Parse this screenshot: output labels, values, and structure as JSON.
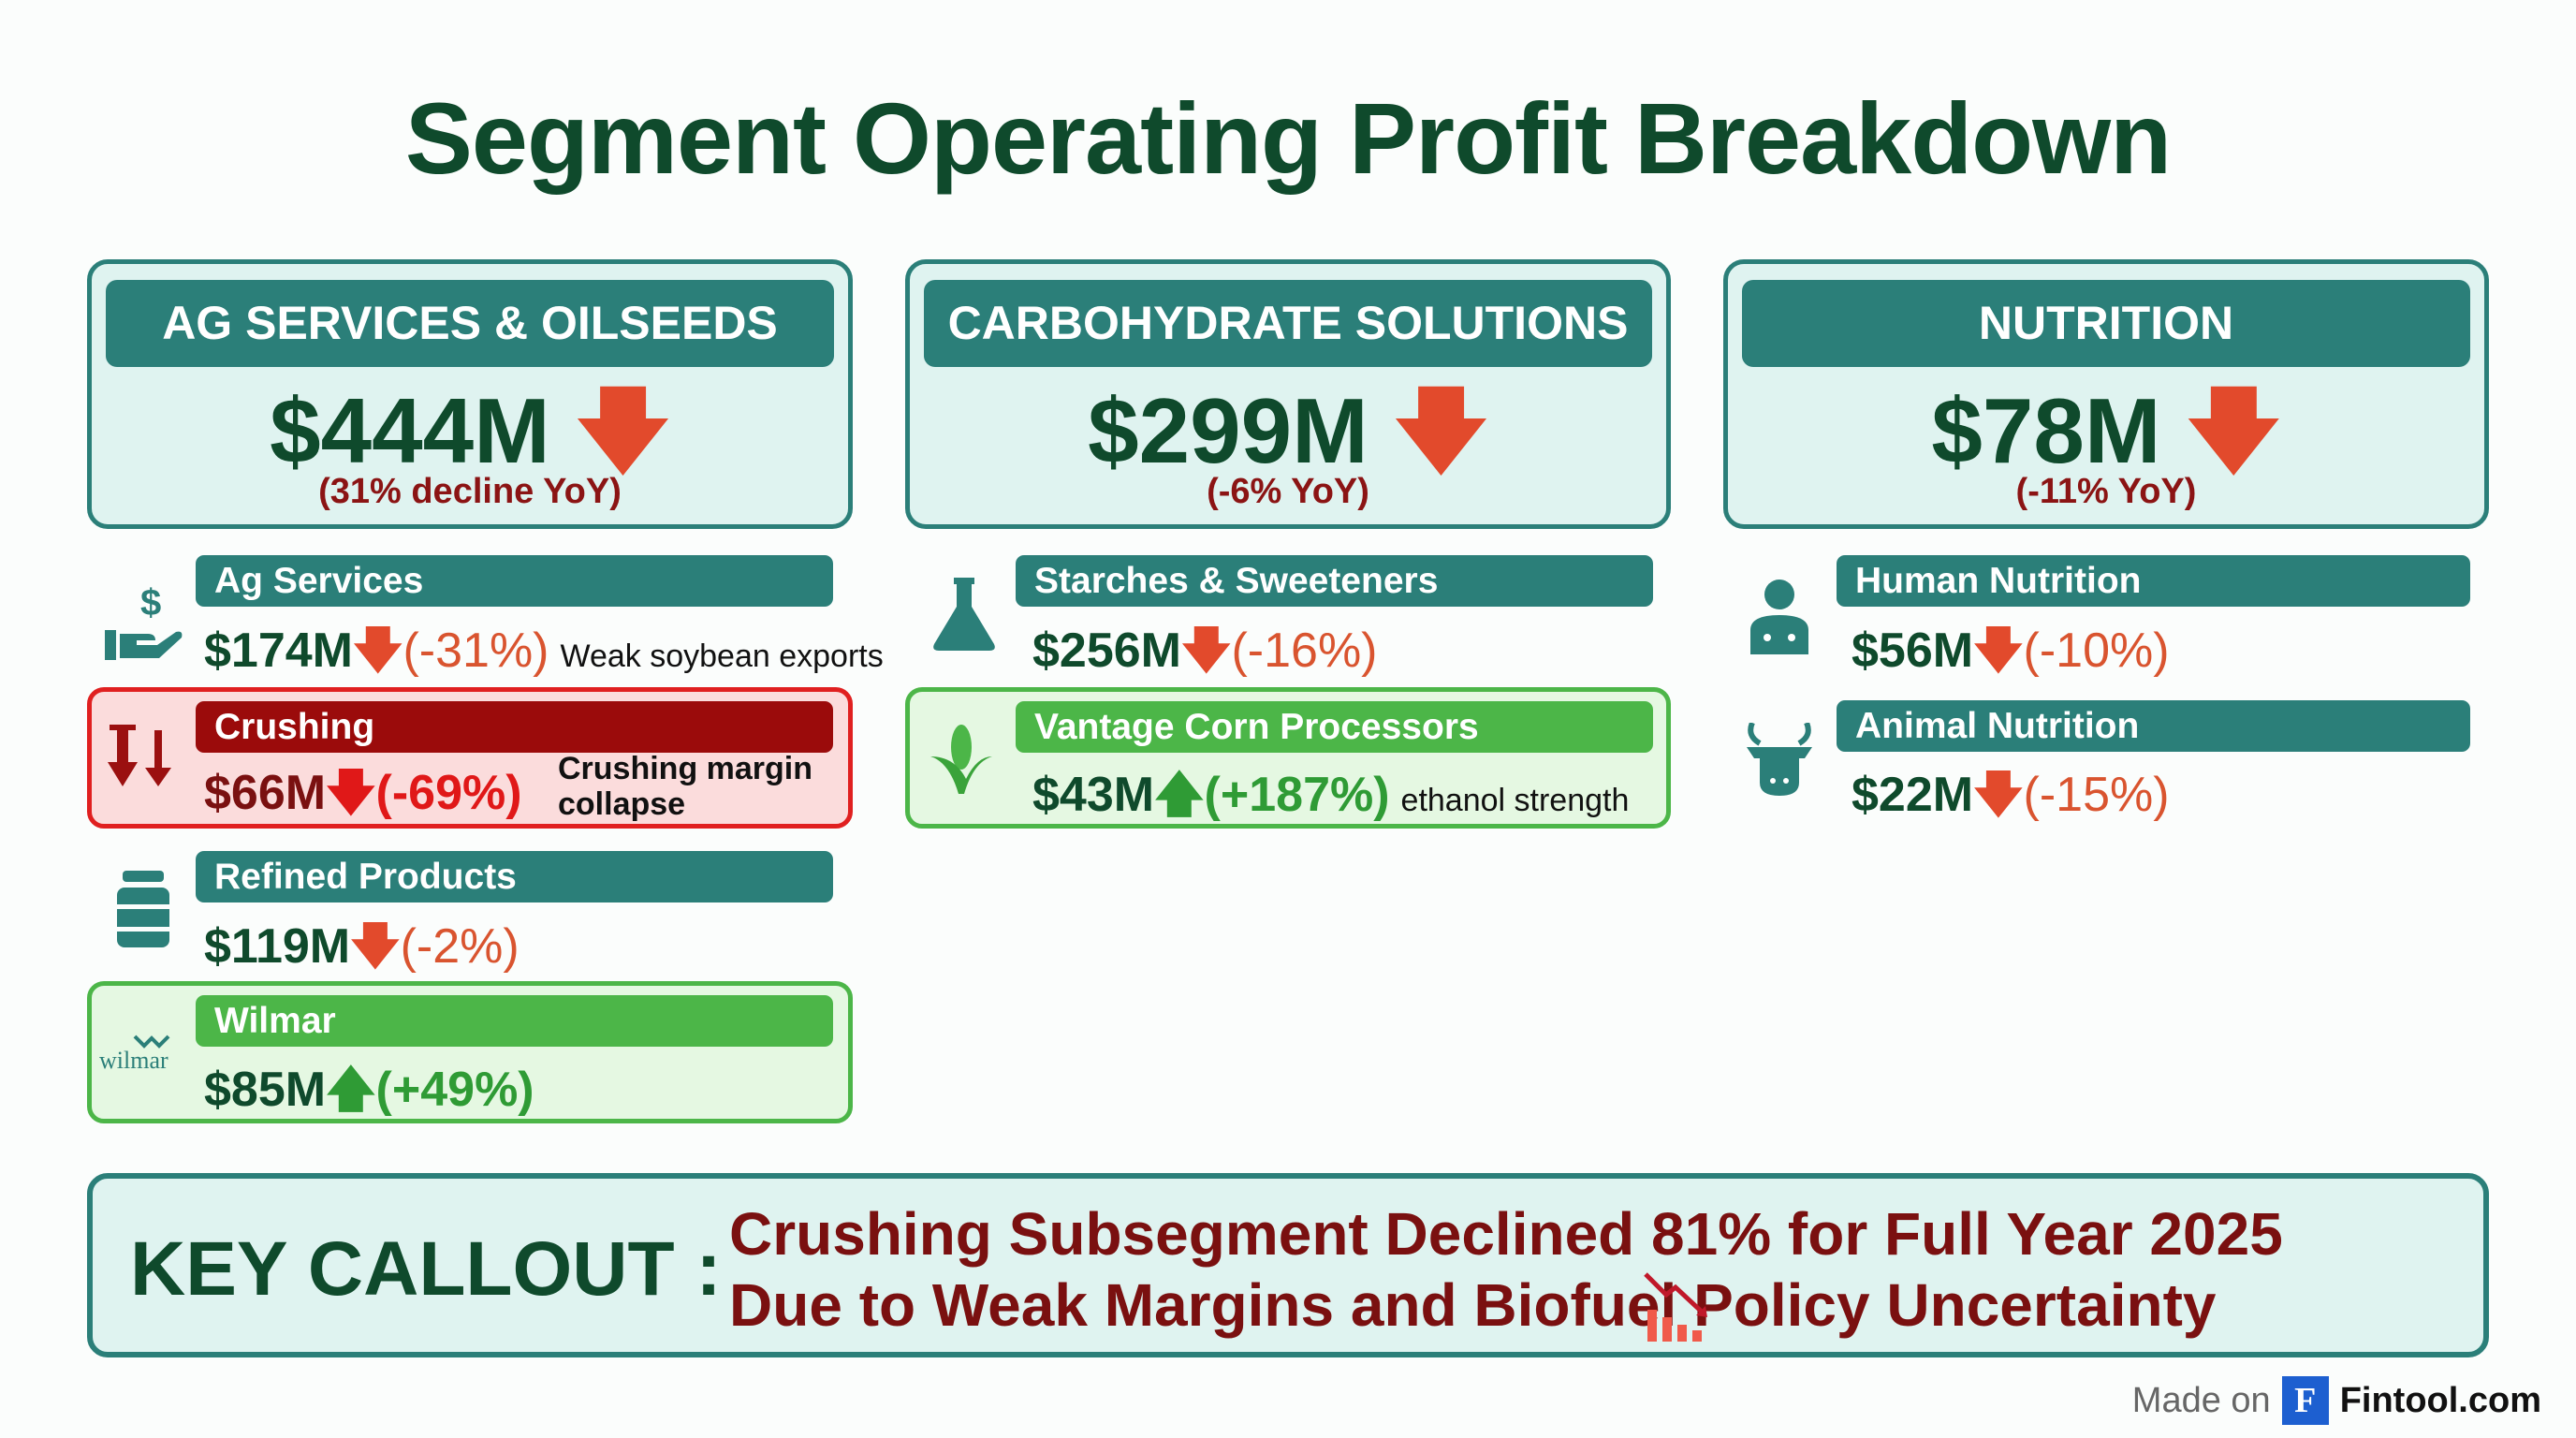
{
  "title": "Segment Operating Profit Breakdown",
  "colors": {
    "teal": "#2b7f79",
    "dark_green": "#0f4a2c",
    "red": "#a50f0f",
    "green": "#4cb648",
    "down_arrow": "#e24a2c"
  },
  "segments": [
    {
      "name": "AG SERVICES & OILSEEDS",
      "value": "$444M",
      "change": "(31% decline YoY)",
      "trend": "down"
    },
    {
      "name": "CARBOHYDRATE SOLUTIONS",
      "value": "$299M",
      "change": "(-6% YoY)",
      "trend": "down"
    },
    {
      "name": "NUTRITION",
      "value": "$78M",
      "change": "(-11% YoY)",
      "trend": "down"
    }
  ],
  "subsegments": {
    "ag_services": {
      "label": "Ag Services",
      "value": "$174M",
      "change": "(-31%)",
      "note": "Weak soybean exports",
      "icon": "hand-dollar-icon"
    },
    "crushing": {
      "label": "Crushing",
      "value": "$66M",
      "change": "(-69%)",
      "note": "Crushing margin collapse",
      "icon": "double-down-arrow-icon"
    },
    "refined": {
      "label": "Refined Products",
      "value": "$119M",
      "change": "(-2%)",
      "icon": "jar-icon"
    },
    "wilmar": {
      "label": "Wilmar",
      "value": "$85M",
      "change": "(+49%)",
      "logo_text": "wilmar"
    },
    "starches": {
      "label": "Starches & Sweeteners",
      "value": "$256M",
      "change": "(-16%)",
      "icon": "flask-icon"
    },
    "vantage": {
      "label": "Vantage Corn Processors",
      "value": "$43M",
      "change": "(+187%)",
      "note": "ethanol strength",
      "icon": "corn-icon"
    },
    "human": {
      "label": "Human Nutrition",
      "value": "$56M",
      "change": "(-10%)",
      "icon": "doctor-icon"
    },
    "animal": {
      "label": "Animal Nutrition",
      "value": "$22M",
      "change": "(-15%)",
      "icon": "cow-icon"
    }
  },
  "callout": {
    "label": "KEY CALLOUT :",
    "line1": "Crushing Subsegment Declined 81% for Full Year 2025",
    "line2": "Due to Weak Margins and Biofuel Policy Uncertainty"
  },
  "footer": {
    "made_on": "Made on",
    "brand_letter": "F",
    "brand": "Fintool.com"
  }
}
